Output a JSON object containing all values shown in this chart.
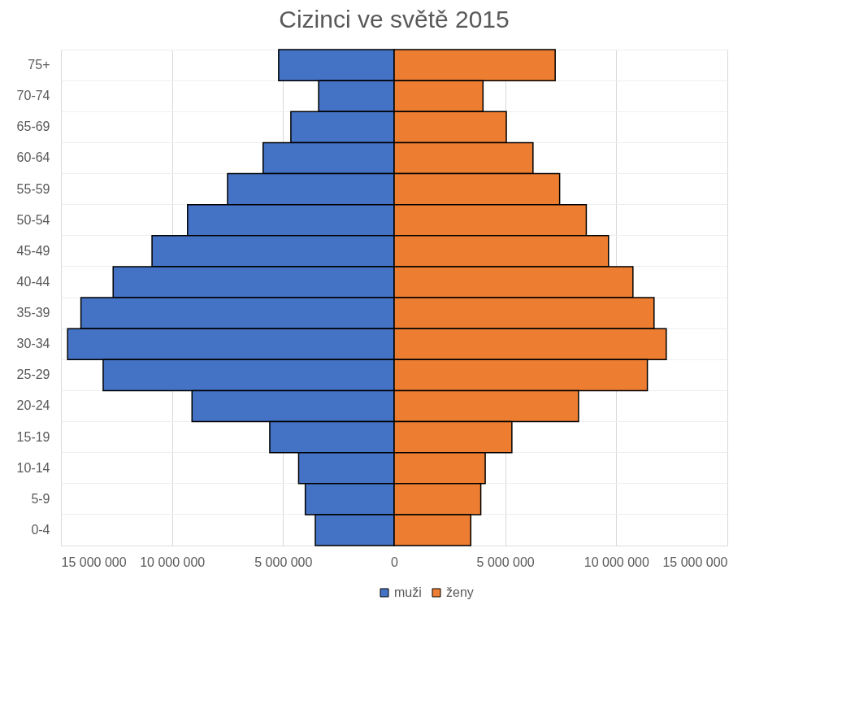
{
  "chart_data": {
    "type": "bar",
    "orientation": "horizontal",
    "title": "Cizinci ve světě 2015",
    "categories": [
      "75+",
      "70-74",
      "65-69",
      "60-64",
      "55-59",
      "50-54",
      "45-49",
      "40-44",
      "35-39",
      "30-34",
      "25-29",
      "20-24",
      "15-19",
      "10-14",
      "5-9",
      "0-4"
    ],
    "series": [
      {
        "name": "muži",
        "color": "#4472c4",
        "values": [
          -5200000,
          -3400000,
          -4650000,
          -5900000,
          -7500000,
          -9300000,
          -10900000,
          -12650000,
          -14100000,
          -14700000,
          -13100000,
          -9100000,
          -5600000,
          -4300000,
          -4000000,
          -3550000
        ]
      },
      {
        "name": "ženy",
        "color": "#ed7d31",
        "values": [
          7250000,
          4000000,
          5050000,
          6250000,
          7450000,
          8650000,
          9650000,
          10750000,
          11700000,
          12250000,
          11400000,
          8300000,
          5300000,
          4100000,
          3900000,
          3450000
        ]
      }
    ],
    "xlim": [
      -15000000,
      15000000
    ],
    "xticks": [
      {
        "value": -15000000,
        "label": "15 000 000"
      },
      {
        "value": -10000000,
        "label": "10 000 000"
      },
      {
        "value": -5000000,
        "label": "5 000 000"
      },
      0,
      {
        "value": 5000000,
        "label": "5 000 000"
      },
      {
        "value": 10000000,
        "label": "10 000 000"
      },
      {
        "value": 15000000,
        "label": "15 000 000"
      }
    ],
    "grid": true,
    "legend": "bottom",
    "stacked": true
  }
}
